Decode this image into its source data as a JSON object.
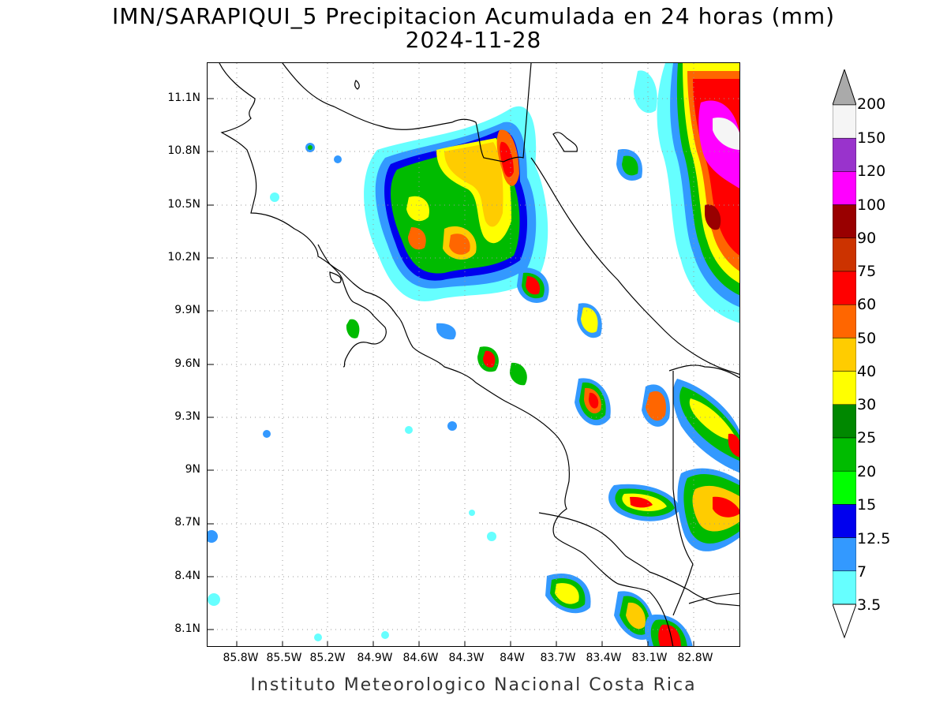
{
  "title_line1": "IMN/SARAPIQUI_5 Precipitacion Acumulada en 24 horas (mm)",
  "title_line2": "2024-11-28",
  "footer": "Instituto Meteorologico Nacional Costa Rica",
  "y_axis_ticks": [
    "11.1N",
    "10.8N",
    "10.5N",
    "10.2N",
    "9.9N",
    "9.6N",
    "9.3N",
    "9N",
    "8.7N",
    "8.4N",
    "8.1N"
  ],
  "x_axis_ticks": [
    "85.8W",
    "85.5W",
    "85.2W",
    "84.9W",
    "84.6W",
    "84.3W",
    "84W",
    "83.7W",
    "83.4W",
    "83.1W",
    "82.8W"
  ],
  "colorbar": {
    "labels": [
      "200",
      "150",
      "120",
      "100",
      "90",
      "75",
      "60",
      "50",
      "40",
      "30",
      "25",
      "20",
      "15",
      "12.5",
      "7",
      "3.5"
    ],
    "colors": [
      "#aaaaaa",
      "#f5f5f5",
      "#9933cc",
      "#ff00ff",
      "#990000",
      "#cc3300",
      "#ff0000",
      "#ff6600",
      "#ffcc00",
      "#ffff00",
      "#008800",
      "#00bb00",
      "#00ff00",
      "#0000ee",
      "#3399ff",
      "#66ffff"
    ]
  },
  "map_colors": {
    "coast": "#000000",
    "grid": "#999999"
  }
}
